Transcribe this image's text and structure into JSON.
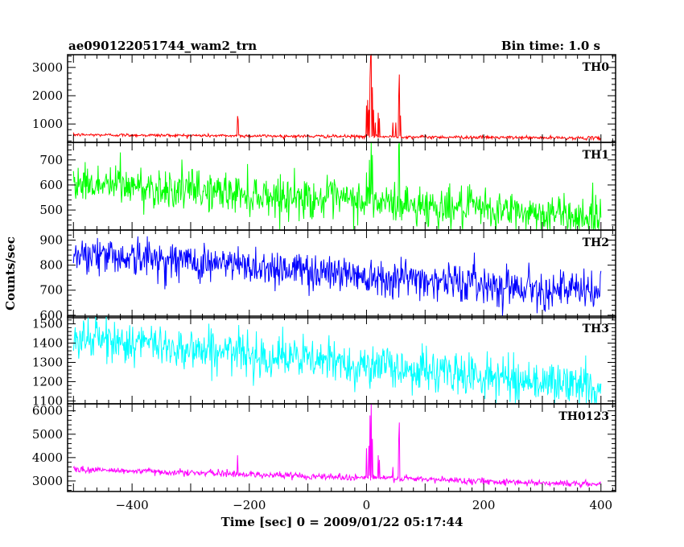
{
  "header": {
    "title": "ae090122051744_wam2_trn",
    "bin_time": "Bin time: 1.0 s"
  },
  "chart_data": {
    "type": "line",
    "title": "ae090122051744_wam2_trn",
    "subtitle": "Bin time: 1.0 s",
    "xlabel": "Time [sec] 0 = 2009/01/22 05:17:44",
    "ylabel": "Counts/sec",
    "xlim": [
      -510,
      425
    ],
    "xticks": [
      -400,
      -200,
      0,
      200,
      400
    ],
    "grid": false,
    "panels": [
      {
        "name": "TH0",
        "color": "#ff0000",
        "ylim": [
          350,
          3450
        ],
        "yticks": [
          1000,
          2000,
          3000
        ],
        "baseline": [
          [
            -500,
            620
          ],
          [
            400,
            500
          ]
        ],
        "noise": 28,
        "spikes": [
          [
            -220,
            1280
          ],
          [
            -219,
            1150
          ],
          [
            0,
            1650
          ],
          [
            2,
            1850
          ],
          [
            4,
            1500
          ],
          [
            6,
            2600
          ],
          [
            7,
            3400
          ],
          [
            8,
            3450
          ],
          [
            10,
            2300
          ],
          [
            12,
            1500
          ],
          [
            15,
            1050
          ],
          [
            20,
            1400
          ],
          [
            22,
            1200
          ],
          [
            45,
            1050
          ],
          [
            50,
            1050
          ],
          [
            55,
            2000
          ],
          [
            56,
            2750
          ],
          [
            58,
            1300
          ]
        ]
      },
      {
        "name": "TH1",
        "color": "#00ff00",
        "ylim": [
          420,
          770
        ],
        "yticks": [
          500,
          600,
          700
        ],
        "baseline": [
          [
            -500,
            610
          ],
          [
            400,
            470
          ]
        ],
        "noise": 40,
        "spikes": [
          [
            -420,
            730
          ],
          [
            0,
            650
          ],
          [
            5,
            700
          ],
          [
            8,
            770
          ],
          [
            10,
            720
          ],
          [
            55,
            760
          ],
          [
            56,
            770
          ]
        ]
      },
      {
        "name": "TH2",
        "color": "#0000ff",
        "ylim": [
          590,
          940
        ],
        "yticks": [
          600,
          700,
          800,
          900
        ],
        "baseline": [
          [
            -500,
            850
          ],
          [
            400,
            690
          ]
        ],
        "noise": 38,
        "spikes": []
      },
      {
        "name": "TH3",
        "color": "#00ffff",
        "ylim": [
          1085,
          1540
        ],
        "yticks": [
          1100,
          1200,
          1300,
          1400,
          1500
        ],
        "baseline": [
          [
            -500,
            1430
          ],
          [
            400,
            1170
          ]
        ],
        "noise": 55,
        "spikes": []
      },
      {
        "name": "TH0123",
        "color": "#ff00ff",
        "ylim": [
          2550,
          6300
        ],
        "yticks": [
          3000,
          4000,
          5000,
          6000
        ],
        "baseline": [
          [
            -500,
            3500
          ],
          [
            400,
            2850
          ]
        ],
        "noise": 70,
        "spikes": [
          [
            -220,
            4100
          ],
          [
            0,
            4400
          ],
          [
            4,
            4500
          ],
          [
            6,
            5800
          ],
          [
            8,
            6300
          ],
          [
            10,
            4800
          ],
          [
            20,
            4100
          ],
          [
            22,
            3900
          ],
          [
            45,
            3600
          ],
          [
            55,
            4800
          ],
          [
            56,
            5500
          ]
        ]
      }
    ]
  }
}
